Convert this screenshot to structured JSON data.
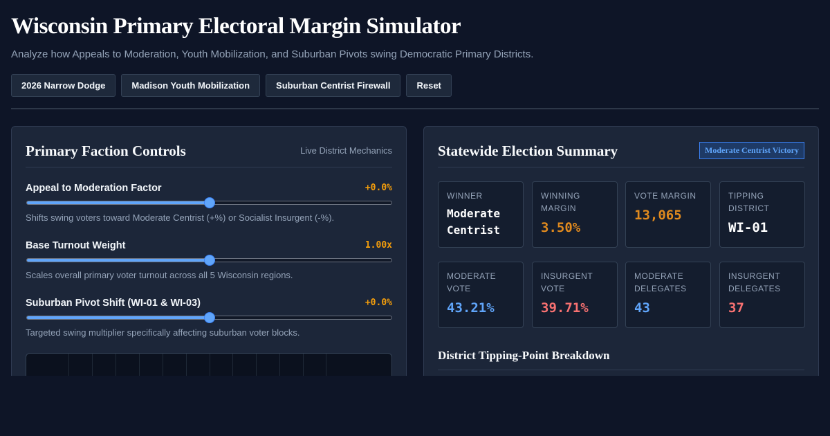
{
  "header": {
    "title": "Wisconsin Primary Electoral Margin Simulator",
    "subtitle": "Analyze how Appeals to Moderation, Youth Mobilization, and Suburban Pivots swing Democratic Primary Districts."
  },
  "presets": [
    {
      "label": "2026 Narrow Dodge"
    },
    {
      "label": "Madison Youth Mobilization"
    },
    {
      "label": "Suburban Centrist Firewall"
    },
    {
      "label": "Reset"
    }
  ],
  "controls_panel": {
    "title": "Primary Faction Controls",
    "tag": "Live District Mechanics",
    "controls": [
      {
        "label": "Appeal to Moderation Factor",
        "value": "+0.0%",
        "position": 0.5,
        "description": "Shifts swing voters toward Moderate Centrist (+%) or Socialist Insurgent (-%)."
      },
      {
        "label": "Base Turnout Weight",
        "value": "1.00x",
        "position": 0.5,
        "description": "Scales overall primary voter turnout across all 5 Wisconsin regions."
      },
      {
        "label": "Suburban Pivot Shift (WI-01 & WI-03)",
        "value": "+0.0%",
        "position": 0.5,
        "description": "Targeted swing multiplier specifically affecting suburban voter blocks."
      }
    ]
  },
  "summary_panel": {
    "title": "Statewide Election Summary",
    "badge": "Moderate Centrist Victory",
    "stats_row1": [
      {
        "label": "Winner",
        "value": "Moderate Centrist",
        "color": "#ffffff"
      },
      {
        "label": "Winning Margin",
        "value": "3.50%",
        "color": "#e08a1e"
      },
      {
        "label": "Vote Margin",
        "value": "13,065",
        "color": "#e08a1e"
      },
      {
        "label": "Tipping District",
        "value": "WI-01",
        "color": "#ffffff"
      }
    ],
    "stats_row2": [
      {
        "label": "Moderate Vote",
        "value": "43.21%",
        "color": "#60a5fa"
      },
      {
        "label": "Insurgent Vote",
        "value": "39.71%",
        "color": "#f87171"
      },
      {
        "label": "Moderate Delegates",
        "value": "43",
        "color": "#60a5fa"
      },
      {
        "label": "Insurgent Delegates",
        "value": "37",
        "color": "#f87171"
      }
    ],
    "section_title": "District Tipping-Point Breakdown"
  }
}
